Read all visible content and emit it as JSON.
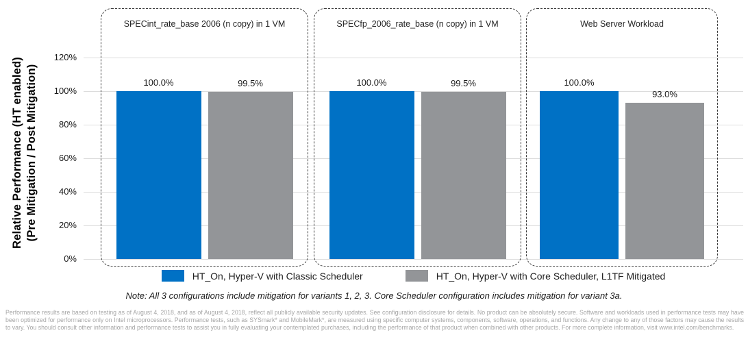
{
  "chart_data": {
    "type": "bar",
    "categories": [
      "SPECint_rate_base 2006 (n copy) in 1 VM",
      "SPECfp_2006_rate_base (n copy) in 1 VM",
      "Web Server Workload"
    ],
    "series": [
      {
        "name": "HT_On, Hyper-V with Classic Scheduler",
        "color": "#0071C5",
        "values": [
          100.0,
          100.0,
          100.0
        ],
        "value_labels": [
          "100.0%",
          "100.0%",
          "100.0%"
        ]
      },
      {
        "name": "HT_On, Hyper-V with Core Scheduler, L1TF Mitigated",
        "color": "#939598",
        "values": [
          99.5,
          99.5,
          93.0
        ],
        "value_labels": [
          "99.5%",
          "99.5%",
          "93.0%"
        ]
      }
    ],
    "ylabel_line1": "Relative Performance (HT enabled)",
    "ylabel_line2": "(Pre Mitigation / Post Mitigation)",
    "yticks": [
      {
        "label": "120%",
        "value": 120
      },
      {
        "label": "100%",
        "value": 100
      },
      {
        "label": "80%",
        "value": 80
      },
      {
        "label": "60%",
        "value": 60
      },
      {
        "label": "40%",
        "value": 40
      },
      {
        "label": "20%",
        "value": 20
      },
      {
        "label": "0%",
        "value": 0
      }
    ],
    "ylim": [
      0,
      120
    ],
    "grid": "horizontal",
    "legend_position": "bottom"
  },
  "note": "Note: All 3 configurations include mitigation for variants 1, 2, 3. Core Scheduler configuration includes mitigation for variant 3a.",
  "disclaimer": "Performance results are based on testing as of August 4, 2018, and as of August 4, 2018, reflect all publicly available security updates. See configuration disclosure for details. No product can be absolutely secure. Software and workloads used in performance tests may have been optimized for performance only on Intel microprocessors. Performance tests, such as SYSmark* and MobileMark*, are measured using specific computer systems, components, software, operations, and functions. Any change to any of those factors may cause the results to vary. You should consult other information and performance tests to assist you in fully evaluating your contemplated purchases, including the performance of that product when combined with other products. For more complete information, visit www.intel.com/benchmarks.",
  "colors": {
    "classic_blue": "#0071C5",
    "core_gray": "#939598",
    "gridline": "#dcdcdc",
    "panel_border": "#3a3a3a"
  }
}
